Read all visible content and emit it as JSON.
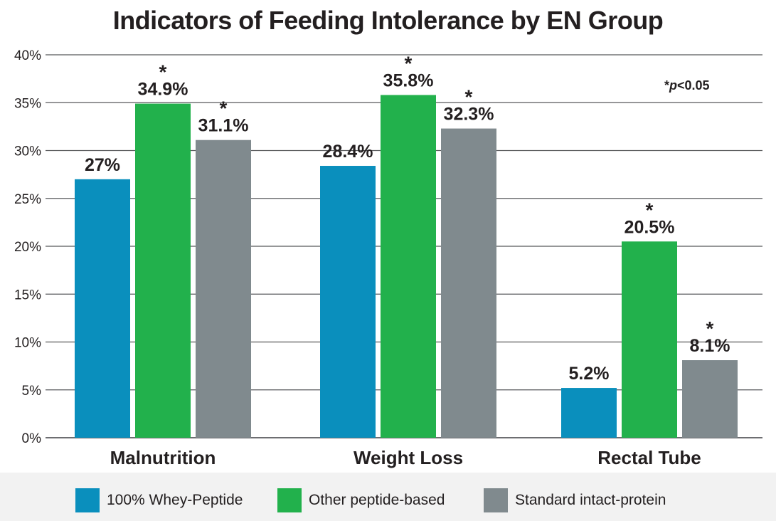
{
  "chart_data": {
    "type": "bar",
    "title": "Indicators of Feeding Intolerance by EN Group",
    "xlabel": "",
    "ylabel": "",
    "ylim": [
      0,
      40
    ],
    "y_ticks": [
      {
        "value": 0,
        "label": "0%"
      },
      {
        "value": 5,
        "label": "5%"
      },
      {
        "value": 10,
        "label": "10%"
      },
      {
        "value": 15,
        "label": "15%"
      },
      {
        "value": 20,
        "label": "20%"
      },
      {
        "value": 25,
        "label": "25%"
      },
      {
        "value": 30,
        "label": "30%"
      },
      {
        "value": 35,
        "label": "35%"
      },
      {
        "value": 40,
        "label": "40%"
      }
    ],
    "grid": true,
    "categories": [
      "Malnutrition",
      "Weight Loss",
      "Rectal Tube"
    ],
    "series": [
      {
        "name": "100% Whey-Peptide",
        "color": "#0a8fbd",
        "values": [
          27,
          28.4,
          5.2
        ],
        "labels": [
          "27%",
          "28.4%",
          "5.2%"
        ],
        "significant": [
          false,
          false,
          false
        ]
      },
      {
        "name": "Other peptide-based",
        "color": "#22b14c",
        "values": [
          34.9,
          35.8,
          20.5
        ],
        "labels": [
          "34.9%",
          "35.8%",
          "20.5%"
        ],
        "significant": [
          true,
          true,
          true
        ]
      },
      {
        "name": "Standard intact-protein",
        "color": "#808a8e",
        "values": [
          31.1,
          32.3,
          8.1
        ],
        "labels": [
          "31.1%",
          "32.3%",
          "8.1%"
        ],
        "significant": [
          true,
          true,
          true
        ]
      }
    ],
    "significance_marker": "*",
    "annotation": {
      "prefix": "*",
      "italic": "p",
      "suffix": "<0.05"
    },
    "legend": "bottom"
  }
}
